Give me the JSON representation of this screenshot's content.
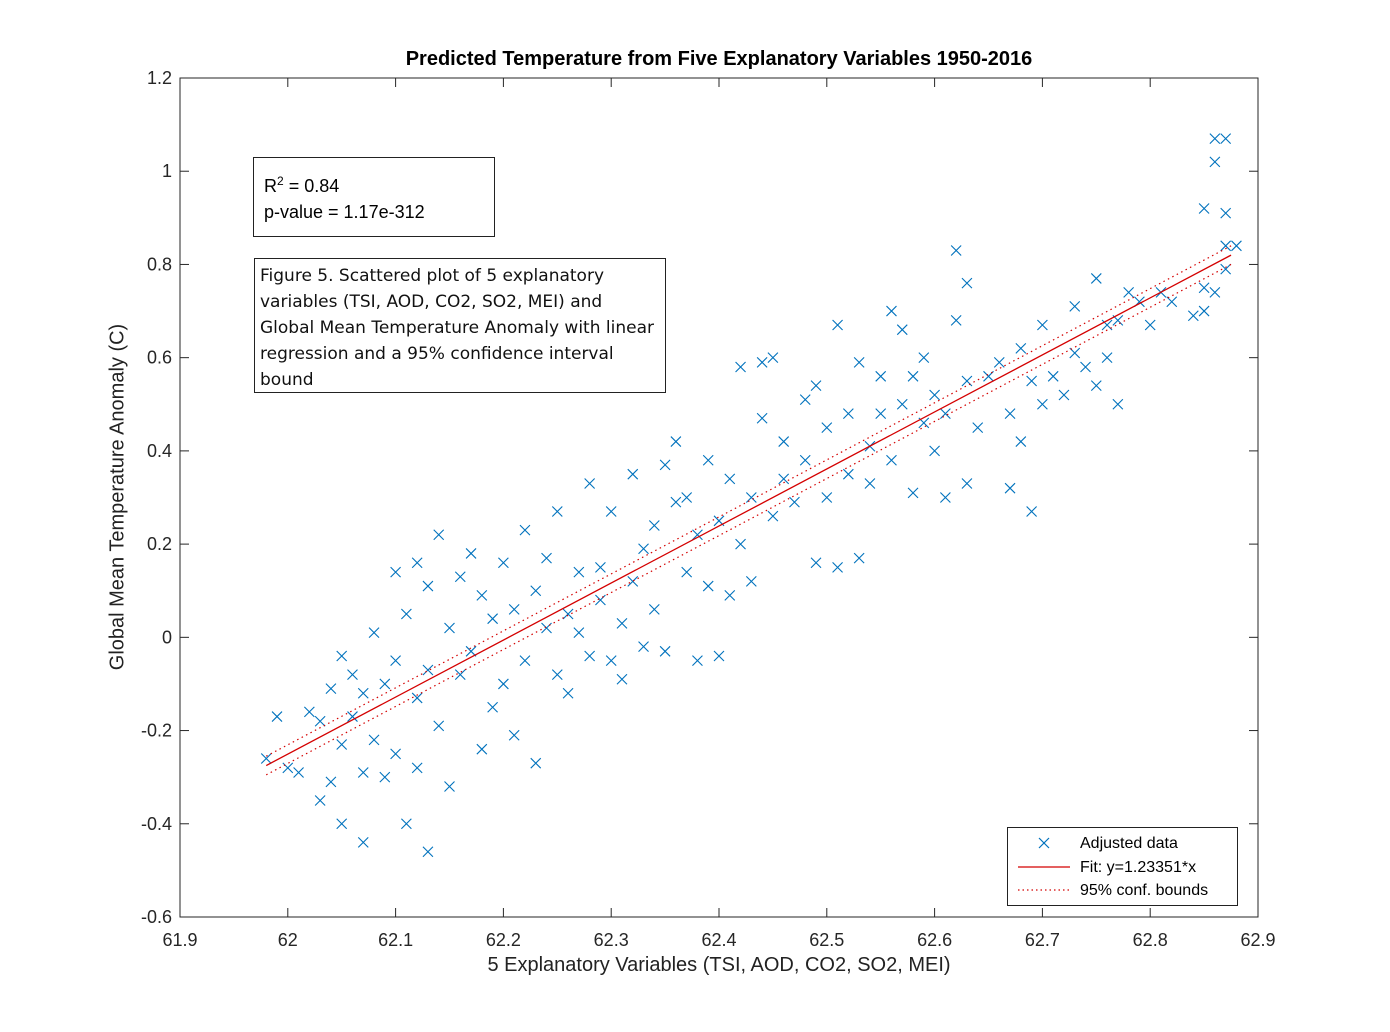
{
  "chart_data": {
    "type": "scatter",
    "title": "Predicted Temperature from Five Explanatory Variables 1950-2016",
    "xlabel": "5 Explanatory Variables (TSI, AOD, CO2, SO2, MEI)",
    "ylabel": "Global Mean Temperature Anomaly (C)",
    "xlim": [
      61.9,
      62.9
    ],
    "ylim": [
      -0.6,
      1.2
    ],
    "xticks": [
      61.9,
      62.0,
      62.1,
      62.2,
      62.3,
      62.4,
      62.5,
      62.6,
      62.7,
      62.8,
      62.9
    ],
    "xtick_labels": [
      "61.9",
      "62",
      "62.1",
      "62.2",
      "62.3",
      "62.4",
      "62.5",
      "62.6",
      "62.7",
      "62.8",
      "62.9"
    ],
    "yticks": [
      -0.6,
      -0.4,
      -0.2,
      0,
      0.2,
      0.4,
      0.6,
      0.8,
      1.0,
      1.2
    ],
    "ytick_labels": [
      "-0.6",
      "-0.4",
      "-0.2",
      "0",
      "0.2",
      "0.4",
      "0.6",
      "0.8",
      "1",
      "1.2"
    ],
    "series": [
      {
        "name": "Adjusted data",
        "marker": "x",
        "color": "#0072BD",
        "points": [
          [
            61.98,
            -0.26
          ],
          [
            61.99,
            -0.17
          ],
          [
            62.0,
            -0.28
          ],
          [
            62.01,
            -0.29
          ],
          [
            62.02,
            -0.16
          ],
          [
            62.03,
            -0.18
          ],
          [
            62.03,
            -0.35
          ],
          [
            62.04,
            -0.31
          ],
          [
            62.04,
            -0.11
          ],
          [
            62.05,
            -0.23
          ],
          [
            62.05,
            -0.04
          ],
          [
            62.05,
            -0.4
          ],
          [
            62.06,
            -0.17
          ],
          [
            62.06,
            -0.08
          ],
          [
            62.07,
            -0.29
          ],
          [
            62.07,
            -0.44
          ],
          [
            62.07,
            -0.12
          ],
          [
            62.08,
            0.01
          ],
          [
            62.08,
            -0.22
          ],
          [
            62.09,
            -0.1
          ],
          [
            62.09,
            -0.3
          ],
          [
            62.1,
            0.14
          ],
          [
            62.1,
            -0.05
          ],
          [
            62.1,
            -0.25
          ],
          [
            62.11,
            -0.4
          ],
          [
            62.11,
            0.05
          ],
          [
            62.12,
            -0.13
          ],
          [
            62.12,
            -0.28
          ],
          [
            62.12,
            0.16
          ],
          [
            62.13,
            -0.46
          ],
          [
            62.13,
            -0.07
          ],
          [
            62.13,
            0.11
          ],
          [
            62.14,
            0.22
          ],
          [
            62.14,
            -0.19
          ],
          [
            62.15,
            0.02
          ],
          [
            62.15,
            -0.32
          ],
          [
            62.16,
            -0.08
          ],
          [
            62.16,
            0.13
          ],
          [
            62.17,
            0.18
          ],
          [
            62.17,
            -0.03
          ],
          [
            62.18,
            -0.24
          ],
          [
            62.18,
            0.09
          ],
          [
            62.19,
            -0.15
          ],
          [
            62.19,
            0.04
          ],
          [
            62.2,
            -0.1
          ],
          [
            62.2,
            0.16
          ],
          [
            62.21,
            -0.21
          ],
          [
            62.21,
            0.06
          ],
          [
            62.22,
            0.23
          ],
          [
            62.22,
            -0.05
          ],
          [
            62.23,
            0.1
          ],
          [
            62.23,
            -0.27
          ],
          [
            62.24,
            0.02
          ],
          [
            62.24,
            0.17
          ],
          [
            62.25,
            -0.08
          ],
          [
            62.25,
            0.27
          ],
          [
            62.26,
            0.05
          ],
          [
            62.26,
            -0.12
          ],
          [
            62.27,
            0.14
          ],
          [
            62.27,
            0.01
          ],
          [
            62.28,
            0.33
          ],
          [
            62.28,
            -0.04
          ],
          [
            62.29,
            0.08
          ],
          [
            62.29,
            0.15
          ],
          [
            62.3,
            -0.05
          ],
          [
            62.3,
            0.27
          ],
          [
            62.31,
            0.03
          ],
          [
            62.31,
            -0.09
          ],
          [
            62.32,
            0.35
          ],
          [
            62.32,
            0.12
          ],
          [
            62.33,
            0.19
          ],
          [
            62.33,
            -0.02
          ],
          [
            62.34,
            0.06
          ],
          [
            62.34,
            0.24
          ],
          [
            62.35,
            0.37
          ],
          [
            62.35,
            -0.03
          ],
          [
            62.36,
            0.29
          ],
          [
            62.36,
            0.42
          ],
          [
            62.37,
            0.14
          ],
          [
            62.37,
            0.3
          ],
          [
            62.38,
            -0.05
          ],
          [
            62.38,
            0.22
          ],
          [
            62.39,
            0.11
          ],
          [
            62.39,
            0.38
          ],
          [
            62.4,
            -0.04
          ],
          [
            62.4,
            0.25
          ],
          [
            62.41,
            0.09
          ],
          [
            62.41,
            0.34
          ],
          [
            62.42,
            0.58
          ],
          [
            62.42,
            0.2
          ],
          [
            62.43,
            0.12
          ],
          [
            62.43,
            0.3
          ],
          [
            62.44,
            0.47
          ],
          [
            62.44,
            0.59
          ],
          [
            62.45,
            0.26
          ],
          [
            62.45,
            0.6
          ],
          [
            62.46,
            0.34
          ],
          [
            62.46,
            0.42
          ],
          [
            62.47,
            0.29
          ],
          [
            62.48,
            0.51
          ],
          [
            62.48,
            0.38
          ],
          [
            62.49,
            0.16
          ],
          [
            62.49,
            0.54
          ],
          [
            62.5,
            0.45
          ],
          [
            62.5,
            0.3
          ],
          [
            62.51,
            0.15
          ],
          [
            62.51,
            0.67
          ],
          [
            62.52,
            0.48
          ],
          [
            62.52,
            0.35
          ],
          [
            62.53,
            0.17
          ],
          [
            62.53,
            0.59
          ],
          [
            62.54,
            0.41
          ],
          [
            62.54,
            0.33
          ],
          [
            62.55,
            0.56
          ],
          [
            62.55,
            0.48
          ],
          [
            62.56,
            0.7
          ],
          [
            62.56,
            0.38
          ],
          [
            62.57,
            0.66
          ],
          [
            62.57,
            0.5
          ],
          [
            62.58,
            0.31
          ],
          [
            62.58,
            0.56
          ],
          [
            62.59,
            0.46
          ],
          [
            62.59,
            0.6
          ],
          [
            62.6,
            0.4
          ],
          [
            62.6,
            0.52
          ],
          [
            62.61,
            0.3
          ],
          [
            62.61,
            0.48
          ],
          [
            62.62,
            0.68
          ],
          [
            62.62,
            0.83
          ],
          [
            62.63,
            0.76
          ],
          [
            62.63,
            0.55
          ],
          [
            62.63,
            0.33
          ],
          [
            62.64,
            0.45
          ],
          [
            62.65,
            0.56
          ],
          [
            62.66,
            0.59
          ],
          [
            62.67,
            0.32
          ],
          [
            62.67,
            0.48
          ],
          [
            62.68,
            0.62
          ],
          [
            62.68,
            0.42
          ],
          [
            62.69,
            0.27
          ],
          [
            62.69,
            0.55
          ],
          [
            62.7,
            0.67
          ],
          [
            62.7,
            0.5
          ],
          [
            62.71,
            0.56
          ],
          [
            62.72,
            0.52
          ],
          [
            62.73,
            0.71
          ],
          [
            62.73,
            0.61
          ],
          [
            62.74,
            0.58
          ],
          [
            62.75,
            0.77
          ],
          [
            62.75,
            0.54
          ],
          [
            62.76,
            0.67
          ],
          [
            62.76,
            0.6
          ],
          [
            62.77,
            0.5
          ],
          [
            62.77,
            0.68
          ],
          [
            62.78,
            0.74
          ],
          [
            62.79,
            0.72
          ],
          [
            62.8,
            0.67
          ],
          [
            62.81,
            0.74
          ],
          [
            62.82,
            0.72
          ],
          [
            62.84,
            0.69
          ],
          [
            62.85,
            0.75
          ],
          [
            62.85,
            0.92
          ],
          [
            62.85,
            0.7
          ],
          [
            62.86,
            1.07
          ],
          [
            62.86,
            1.02
          ],
          [
            62.86,
            0.74
          ],
          [
            62.87,
            1.07
          ],
          [
            62.87,
            0.84
          ],
          [
            62.87,
            0.91
          ],
          [
            62.87,
            0.79
          ],
          [
            62.88,
            0.84
          ]
        ]
      },
      {
        "name": "Fit: y=1.23351*x",
        "type": "line",
        "color": "#d40000",
        "points": [
          [
            61.98,
            -0.275
          ],
          [
            62.875,
            0.82
          ]
        ]
      },
      {
        "name": "95% conf. bounds",
        "type": "line",
        "style": "dotted",
        "color": "#d40000",
        "upper": [
          [
            61.98,
            -0.255
          ],
          [
            62.43,
            0.295
          ],
          [
            62.875,
            0.84
          ]
        ],
        "lower": [
          [
            61.98,
            -0.295
          ],
          [
            62.43,
            0.255
          ],
          [
            62.875,
            0.8
          ]
        ]
      }
    ],
    "legend_position": "bottom-right",
    "grid": false
  },
  "annotations": {
    "r2_prefix": "R",
    "r2_sup": "2",
    "r2_value": " = 0.84",
    "pvalue": "p-value = 1.17e-312",
    "caption": "Figure 5. Scattered plot of 5 explanatory variables (TSI, AOD, CO2, SO2, MEI) and Global Mean Temperature Anomaly with linear regression and a 95% confidence interval bound"
  },
  "legend": {
    "items": [
      {
        "label": "Adjusted data",
        "symbol": "x-marker",
        "color": "#0072BD"
      },
      {
        "label": "Fit: y=1.23351*x",
        "symbol": "solid-line",
        "color": "#d40000"
      },
      {
        "label": "95% conf. bounds",
        "symbol": "dotted-line",
        "color": "#d40000"
      }
    ]
  }
}
